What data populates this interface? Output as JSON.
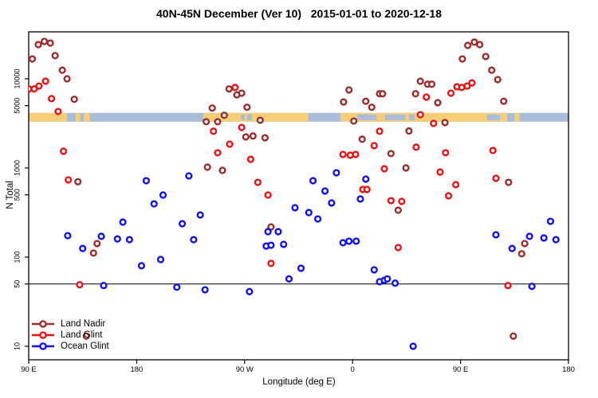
{
  "title": "40N-45N December (Ver 10)   2015-01-01 to 2020-12-18",
  "x_axis": {
    "label": "Longitude (deg E)",
    "range_deg": [
      90,
      540
    ],
    "ticks": [
      {
        "deg": 90,
        "label": "90 E"
      },
      {
        "deg": 180,
        "label": "180"
      },
      {
        "deg": 270,
        "label": "90 W"
      },
      {
        "deg": 360,
        "label": "0"
      },
      {
        "deg": 450,
        "label": "90 E"
      },
      {
        "deg": 540,
        "label": "180"
      }
    ]
  },
  "y_axis": {
    "label": "N Total",
    "scale": "log10",
    "ticks": [
      {
        "value": 10,
        "label": "10"
      },
      {
        "value": 50,
        "label": "50"
      },
      {
        "value": 100,
        "label": "100"
      },
      {
        "value": 500,
        "label": "500"
      },
      {
        "value": 1000,
        "label": "1000"
      },
      {
        "value": 5000,
        "label": "5000"
      },
      {
        "value": 10000,
        "label": "10000"
      }
    ]
  },
  "reference_line": {
    "value": 50,
    "color": "#000000"
  },
  "map_band": {
    "description": "land/ocean longitude strip for 40N-45N",
    "center_value": 3700,
    "ocean_color": "#A9BCD9",
    "land_color": "#F7CE78",
    "land_segments_deg": [
      [
        90,
        122
      ],
      [
        129,
        133
      ],
      [
        136,
        141
      ],
      [
        235.5,
        323
      ],
      [
        350,
        489
      ],
      [
        495,
        499
      ]
    ],
    "ocean_patches_deg": [
      [
        267,
        270
      ],
      [
        272,
        276
      ],
      [
        364,
        380
      ],
      [
        387,
        404
      ],
      [
        407,
        412
      ],
      [
        472,
        483
      ]
    ]
  },
  "legend": {
    "items": [
      {
        "label": "Land Nadir",
        "color": "#9E2B2B"
      },
      {
        "label": "Land Glint",
        "color": "#EE1111"
      },
      {
        "label": "Ocean Glint",
        "color": "#1111EE"
      }
    ]
  },
  "chart_data": {
    "type": "scatter",
    "title": "40N-45N December (Ver 10)   2015-01-01 to 2020-12-18",
    "xlabel": "Longitude (deg E)",
    "ylabel": "N Total",
    "x_unit": "degrees east, continuous 90..540 (wraps 180/-180)",
    "y_scale": "log10",
    "ylim": [
      7,
      33000
    ],
    "series": [
      {
        "name": "Land Nadir",
        "color": "#9E2B2B",
        "points": [
          [
            93,
            16700
          ],
          [
            98,
            24200
          ],
          [
            103,
            26300
          ],
          [
            108,
            25200
          ],
          [
            112,
            18200
          ],
          [
            118,
            12500
          ],
          [
            122,
            10000
          ],
          [
            128,
            5900
          ],
          [
            131,
            700
          ],
          [
            138,
            13
          ],
          [
            144,
            111
          ],
          [
            147,
            142
          ],
          [
            238,
            3300
          ],
          [
            239,
            1020
          ],
          [
            243,
            4700
          ],
          [
            247.5,
            3300
          ],
          [
            251.5,
            940
          ],
          [
            253,
            3900
          ],
          [
            257,
            7700
          ],
          [
            263.5,
            6600
          ],
          [
            267.5,
            6900
          ],
          [
            271,
            2230
          ],
          [
            272,
            4800
          ],
          [
            277,
            2280
          ],
          [
            283,
            3430
          ],
          [
            287,
            2180
          ],
          [
            292,
            218
          ],
          [
            352.5,
            5500
          ],
          [
            357,
            7500
          ],
          [
            361,
            3360
          ],
          [
            368,
            2100
          ],
          [
            371,
            5600
          ],
          [
            376,
            4800
          ],
          [
            382.5,
            6800
          ],
          [
            385,
            6800
          ],
          [
            392,
            1450
          ],
          [
            398,
            336
          ],
          [
            404.5,
            1000
          ],
          [
            407,
            2600
          ],
          [
            412.5,
            6800
          ],
          [
            416.5,
            9400
          ],
          [
            422.5,
            8700
          ],
          [
            426,
            8700
          ],
          [
            431,
            5400
          ],
          [
            437,
            3230
          ],
          [
            451.5,
            16700
          ],
          [
            456,
            23700
          ],
          [
            461.5,
            25800
          ],
          [
            466,
            24200
          ],
          [
            471,
            17800
          ],
          [
            476,
            12500
          ],
          [
            481,
            9800
          ],
          [
            486,
            5600
          ],
          [
            490,
            690
          ],
          [
            494,
            13
          ],
          [
            501,
            109
          ],
          [
            503.5,
            142
          ]
        ]
      },
      {
        "name": "Land Glint",
        "color": "#EE1111",
        "points": [
          [
            90,
            7700
          ],
          [
            94.5,
            7700
          ],
          [
            98.5,
            8300
          ],
          [
            104,
            9400
          ],
          [
            109,
            6000
          ],
          [
            114.5,
            4300
          ],
          [
            119,
            1540
          ],
          [
            123,
            735
          ],
          [
            132.5,
            49
          ],
          [
            244,
            2580
          ],
          [
            247.5,
            1480
          ],
          [
            257.5,
            1850
          ],
          [
            262,
            8000
          ],
          [
            267.5,
            2850
          ],
          [
            275,
            1250
          ],
          [
            281,
            690
          ],
          [
            289.5,
            497
          ],
          [
            292,
            85
          ],
          [
            352,
            1420
          ],
          [
            358,
            1390
          ],
          [
            362.5,
            1420
          ],
          [
            368.5,
            574
          ],
          [
            372,
            574
          ],
          [
            378,
            1780
          ],
          [
            382.5,
            2580
          ],
          [
            386.5,
            980
          ],
          [
            392,
            430
          ],
          [
            398,
            128
          ],
          [
            401,
            422
          ],
          [
            413,
            1710
          ],
          [
            416.5,
            3960
          ],
          [
            421.5,
            6240
          ],
          [
            427.5,
            3160
          ],
          [
            433,
            900
          ],
          [
            437.5,
            1480
          ],
          [
            440,
            487
          ],
          [
            446,
            650
          ],
          [
            442,
            6900
          ],
          [
            447,
            8150
          ],
          [
            451,
            8000
          ],
          [
            455.5,
            8300
          ],
          [
            459.5,
            9000
          ],
          [
            477,
            1570
          ],
          [
            479.5,
            766
          ],
          [
            489.5,
            48
          ]
        ]
      },
      {
        "name": "Ocean Glint",
        "color": "#1111EE",
        "points": [
          [
            122.5,
            174
          ],
          [
            135,
            125
          ],
          [
            150.5,
            171
          ],
          [
            152.5,
            48
          ],
          [
            164,
            160
          ],
          [
            168.5,
            247
          ],
          [
            174,
            157
          ],
          [
            184,
            80
          ],
          [
            188,
            719
          ],
          [
            194.5,
            396
          ],
          [
            200,
            94
          ],
          [
            202,
            497
          ],
          [
            213.5,
            46
          ],
          [
            218,
            237
          ],
          [
            223.5,
            815
          ],
          [
            227.5,
            157
          ],
          [
            233,
            297
          ],
          [
            237,
            43
          ],
          [
            274,
            41
          ],
          [
            288,
            133
          ],
          [
            289.5,
            193
          ],
          [
            292,
            136
          ],
          [
            298,
            193
          ],
          [
            302.5,
            139
          ],
          [
            307,
            57
          ],
          [
            312,
            358
          ],
          [
            317,
            75
          ],
          [
            323.5,
            316
          ],
          [
            327,
            719
          ],
          [
            331,
            268
          ],
          [
            337,
            551
          ],
          [
            342.5,
            405
          ],
          [
            346.5,
            883
          ],
          [
            352,
            145
          ],
          [
            357,
            151
          ],
          [
            363,
            151
          ],
          [
            366.5,
            449
          ],
          [
            371,
            750
          ],
          [
            378,
            72
          ],
          [
            382.5,
            53
          ],
          [
            386.5,
            55
          ],
          [
            389,
            57
          ],
          [
            395.5,
            51
          ],
          [
            410.5,
            10
          ],
          [
            479.5,
            178
          ],
          [
            493,
            125
          ],
          [
            507.5,
            171
          ],
          [
            509.5,
            47
          ],
          [
            519.5,
            164
          ],
          [
            525,
            252
          ],
          [
            529.5,
            157
          ]
        ]
      }
    ]
  }
}
